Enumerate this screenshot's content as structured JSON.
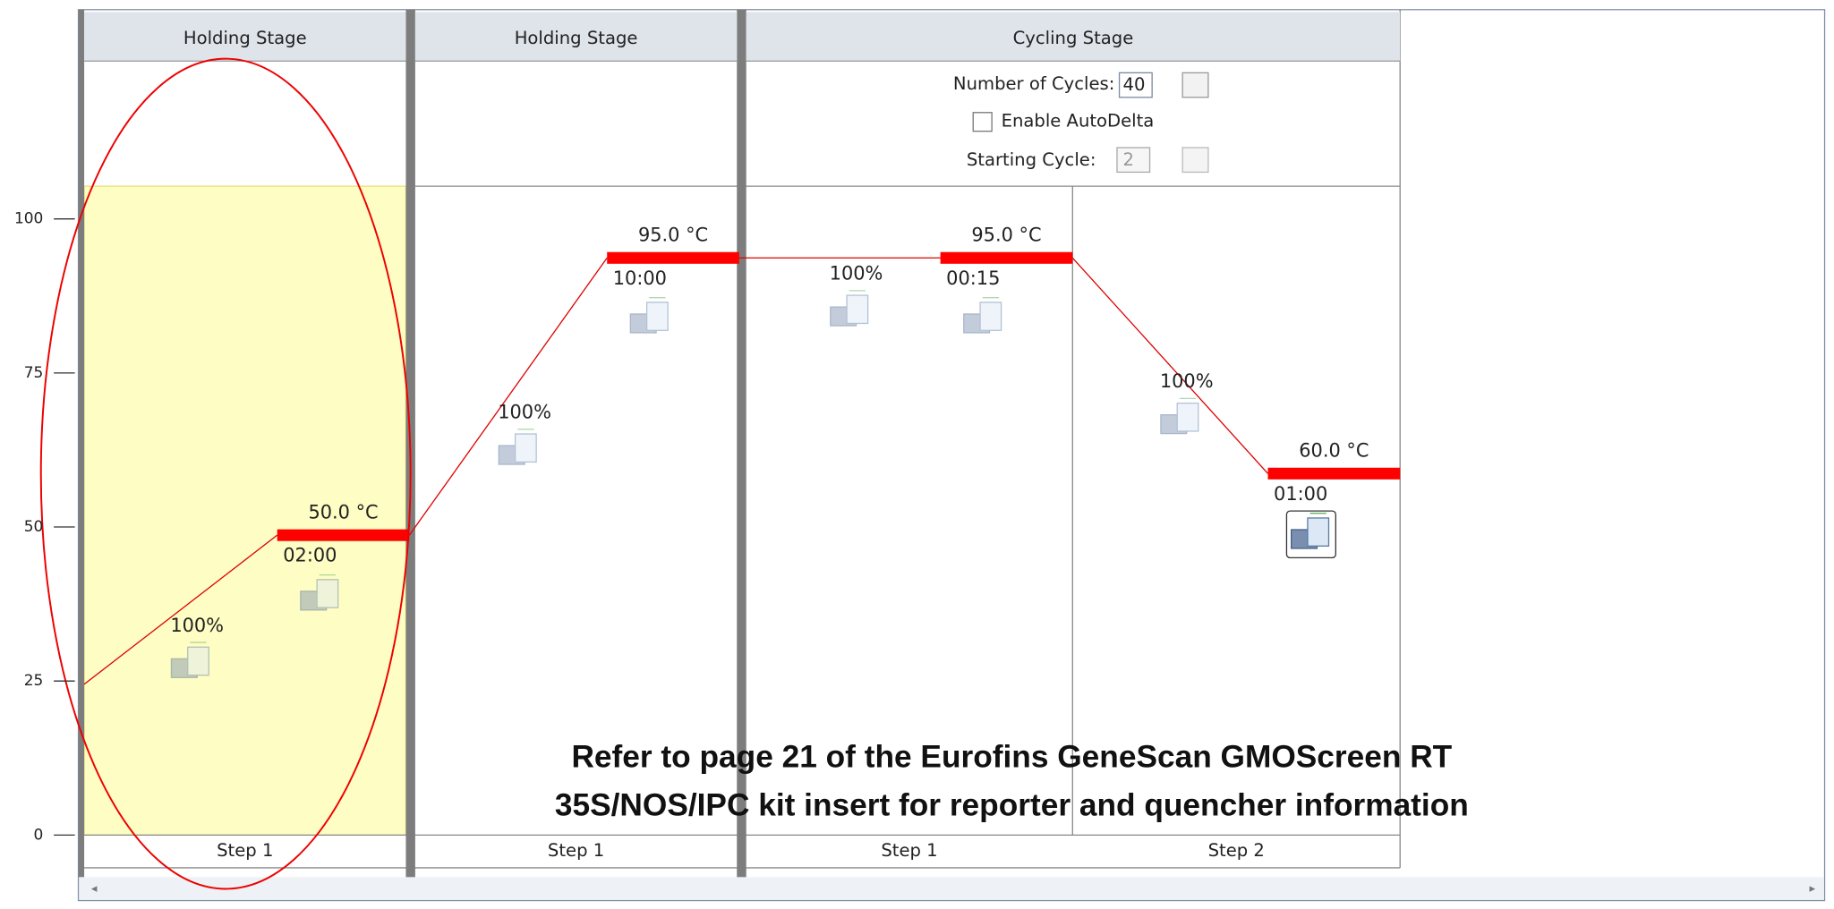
{
  "yaxis": {
    "ylim": [
      0,
      100
    ],
    "ticks": [
      0,
      25,
      50,
      75,
      100
    ]
  },
  "stages": [
    {
      "title": "Holding Stage",
      "steps": [
        {
          "label": "Step 1",
          "ramp": "100%",
          "temp": {
            "value": 50,
            "label": "50.0 °C"
          },
          "time": "02:00"
        }
      ]
    },
    {
      "title": "Holding Stage",
      "steps": [
        {
          "label": "Step 1",
          "ramp": "100%",
          "temp": {
            "value": 95,
            "label": "95.0 °C"
          },
          "time": "10:00"
        }
      ]
    },
    {
      "title": "Cycling Stage",
      "steps": [
        {
          "label": "Step 1",
          "ramp": "100%",
          "temp": {
            "value": 95,
            "label": "95.0 °C"
          },
          "time": "00:15"
        },
        {
          "label": "Step 2",
          "ramp": "100%",
          "temp": {
            "value": 60,
            "label": "60.0 °C"
          },
          "time": "01:00"
        }
      ]
    }
  ],
  "cycling": {
    "cycles_label": "Number of Cycles:",
    "cycles": 40,
    "autodelta": "Enable AutoDelta",
    "start_label": "Starting Cycle:",
    "start": 2
  },
  "note": [
    "Refer to page 21 of the Eurofins GeneScan GMOScreen RT",
    "35S/NOS/IPC kit insert for reporter and quencher information"
  ]
}
